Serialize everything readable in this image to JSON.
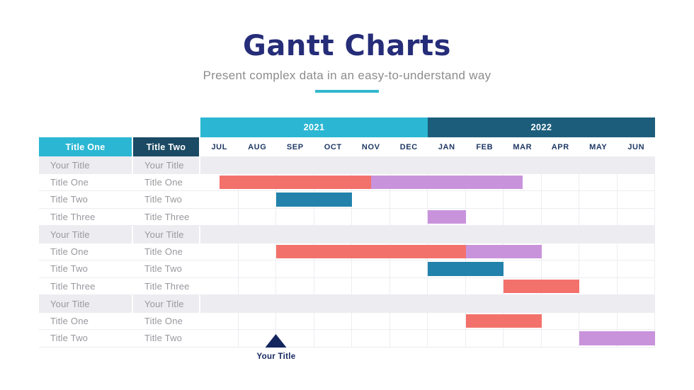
{
  "slide": {
    "title": "Gantt Charts",
    "subtitle": "Present complex data in an easy-to-understand way"
  },
  "colors": {
    "accent_teal": "#32B7CE",
    "year_2021_bg": "#2BB7D3",
    "year_2022_bg": "#1D5D7C",
    "col1_header_bg": "#2BB7D3",
    "col2_header_bg": "#1B4A64",
    "salmon": "#F3716B",
    "purple": "#C993DC",
    "blue": "#2282AB",
    "navy": "#14265E",
    "group_row_bg": "#EDECF0"
  },
  "table": {
    "col1_header": "Title One",
    "col2_header": "Title Two",
    "years": [
      {
        "label": "2021"
      },
      {
        "label": "2022"
      }
    ],
    "months": [
      "JUL",
      "AUG",
      "SEP",
      "OCT",
      "NOV",
      "DEC",
      "JAN",
      "FEB",
      "MAR",
      "APR",
      "MAY",
      "JUN"
    ]
  },
  "chart_data": {
    "type": "gantt",
    "x_unit": "months from JUL 2021",
    "x_range": [
      "JUL 2021",
      "JUN 2022"
    ],
    "rows": [
      {
        "col1": "Your Title",
        "col2": "Your Title",
        "group": true,
        "bars": []
      },
      {
        "col1": "Title One",
        "col2": "Title One",
        "group": false,
        "bars": [
          {
            "start": 0.5,
            "end": 4.5,
            "color": "salmon"
          },
          {
            "start": 4.5,
            "end": 8.5,
            "color": "purple"
          }
        ]
      },
      {
        "col1": "Title Two",
        "col2": "Title Two",
        "group": false,
        "bars": [
          {
            "start": 2,
            "end": 4,
            "color": "blue"
          }
        ]
      },
      {
        "col1": "Title Three",
        "col2": "Title Three",
        "group": false,
        "bars": [
          {
            "start": 6,
            "end": 7,
            "color": "purple"
          }
        ]
      },
      {
        "col1": "Your Title",
        "col2": "Your Title",
        "group": true,
        "bars": []
      },
      {
        "col1": "Title One",
        "col2": "Title One",
        "group": false,
        "bars": [
          {
            "start": 2,
            "end": 7,
            "color": "salmon"
          },
          {
            "start": 7,
            "end": 9,
            "color": "purple"
          }
        ]
      },
      {
        "col1": "Title Two",
        "col2": "Title Two",
        "group": false,
        "bars": [
          {
            "start": 6,
            "end": 8,
            "color": "blue"
          }
        ]
      },
      {
        "col1": "Title Three",
        "col2": "Title Three",
        "group": false,
        "bars": [
          {
            "start": 8,
            "end": 10,
            "color": "salmon"
          }
        ]
      },
      {
        "col1": "Your Title",
        "col2": "Your Title",
        "group": true,
        "bars": []
      },
      {
        "col1": "Title One",
        "col2": "Title One",
        "group": false,
        "bars": [
          {
            "start": 7,
            "end": 9,
            "color": "salmon"
          }
        ]
      },
      {
        "col1": "Title Two",
        "col2": "Title Two",
        "group": false,
        "bars": [
          {
            "start": 10,
            "end": 12,
            "color": "purple"
          }
        ]
      }
    ],
    "marker": {
      "position": 2,
      "label": "Your Title"
    }
  }
}
